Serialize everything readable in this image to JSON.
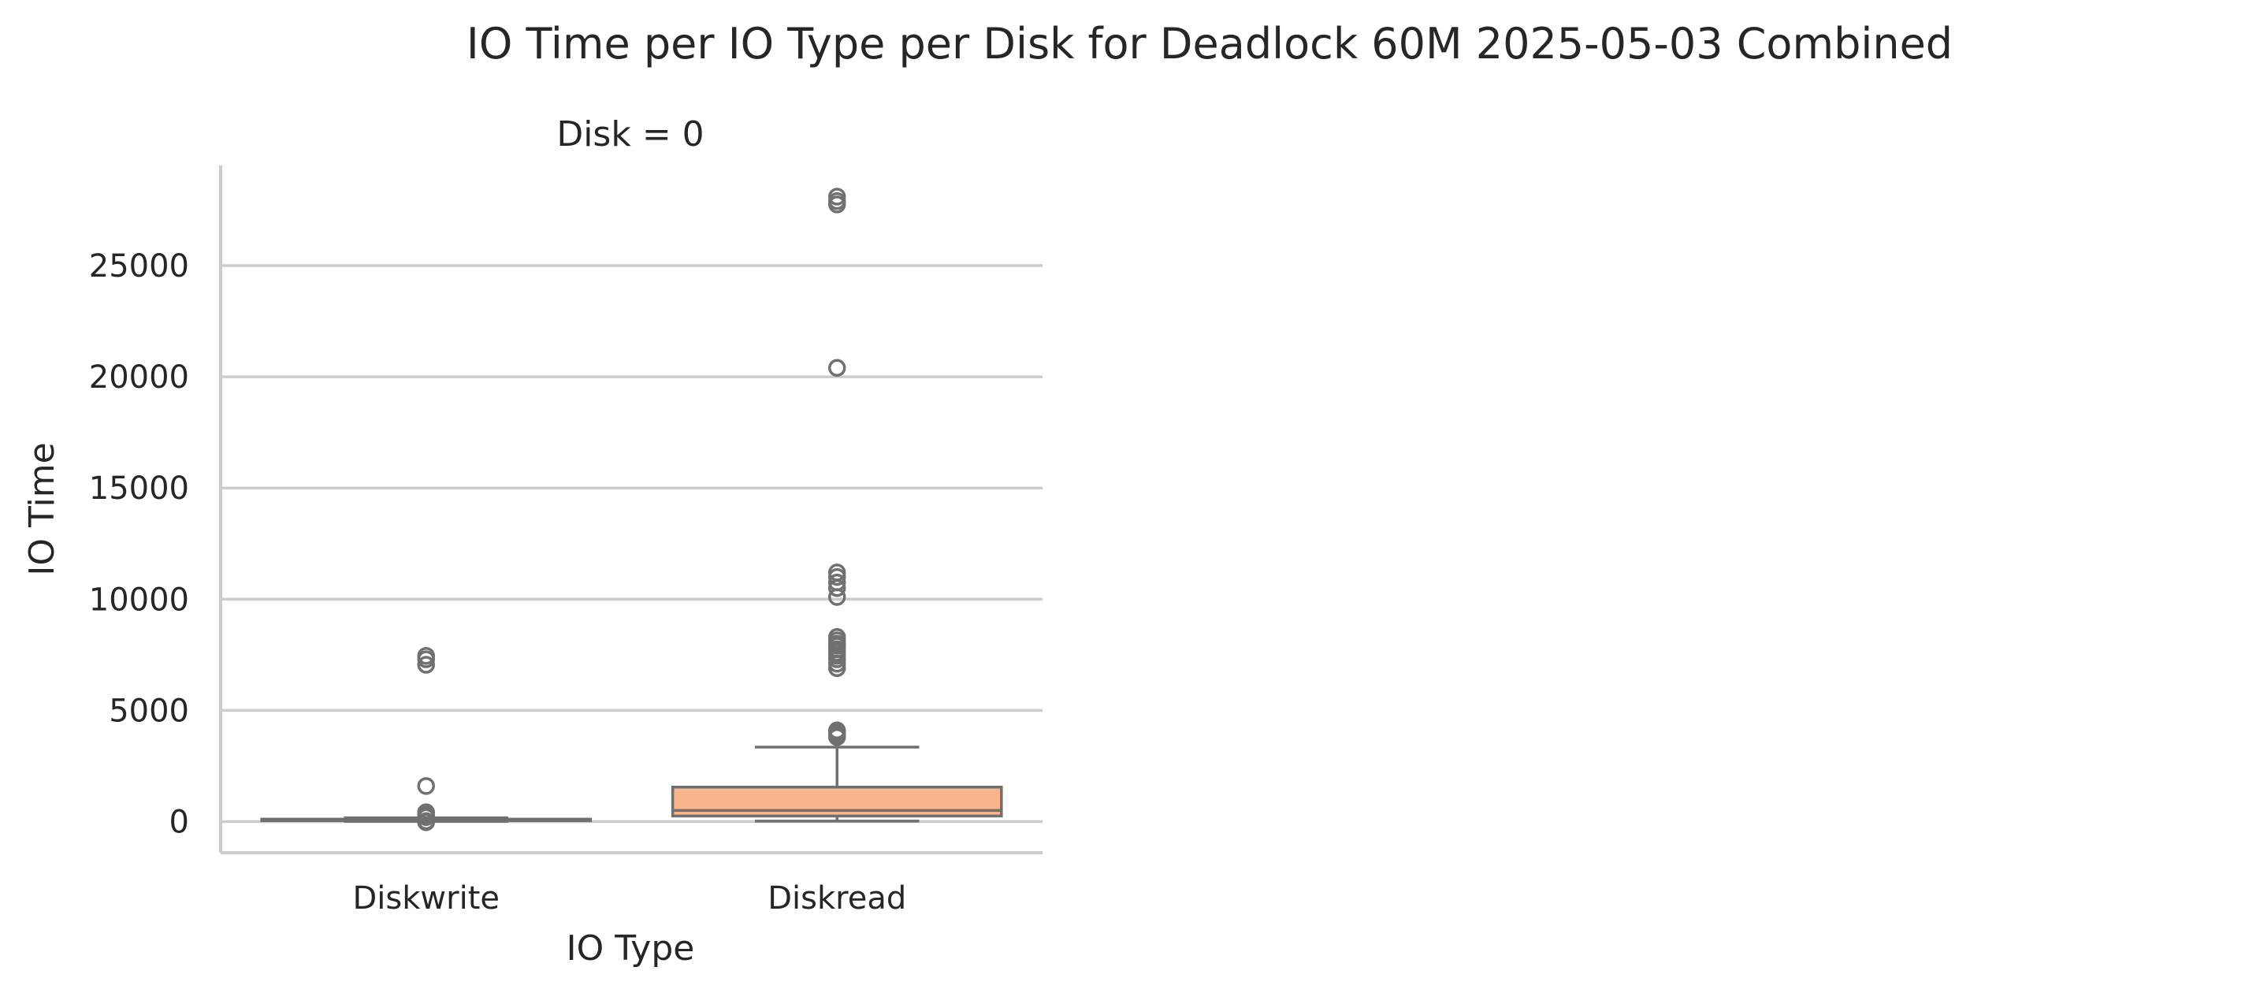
{
  "chart_data": {
    "type": "box",
    "title": "IO Time per IO Type per Disk for Deadlock 60M 2025-05-03 Combined",
    "facet_label": "Disk = 0",
    "xlabel": "IO Type",
    "ylabel": "IO Time",
    "ylim": [
      -1400,
      29500
    ],
    "yticks": [
      0,
      5000,
      10000,
      15000,
      20000,
      25000
    ],
    "ytick_labels": [
      "0",
      "5000",
      "10000",
      "15000",
      "20000",
      "25000"
    ],
    "grid": "horizontal",
    "categories": [
      "Diskwrite",
      "Diskread"
    ],
    "boxes": [
      {
        "category": "Diskwrite",
        "color": "#8da0cb",
        "whisker_low": 10,
        "q1": 40,
        "median": 70,
        "q3": 110,
        "whisker_high": 170,
        "outliers": [
          7450,
          7300,
          7050,
          1600,
          420,
          300,
          200,
          20,
          0,
          -30
        ]
      },
      {
        "category": "Diskread",
        "color": "#fcb48c",
        "whisker_low": 20,
        "q1": 250,
        "median": 500,
        "q3": 1550,
        "whisker_high": 3350,
        "outliers": [
          28100,
          27900,
          27750,
          20400,
          11200,
          11000,
          10750,
          10500,
          10100,
          8300,
          8150,
          8000,
          7900,
          7750,
          7600,
          7450,
          7300,
          7100,
          6900,
          4100,
          4000,
          3900,
          3800
        ]
      }
    ]
  }
}
